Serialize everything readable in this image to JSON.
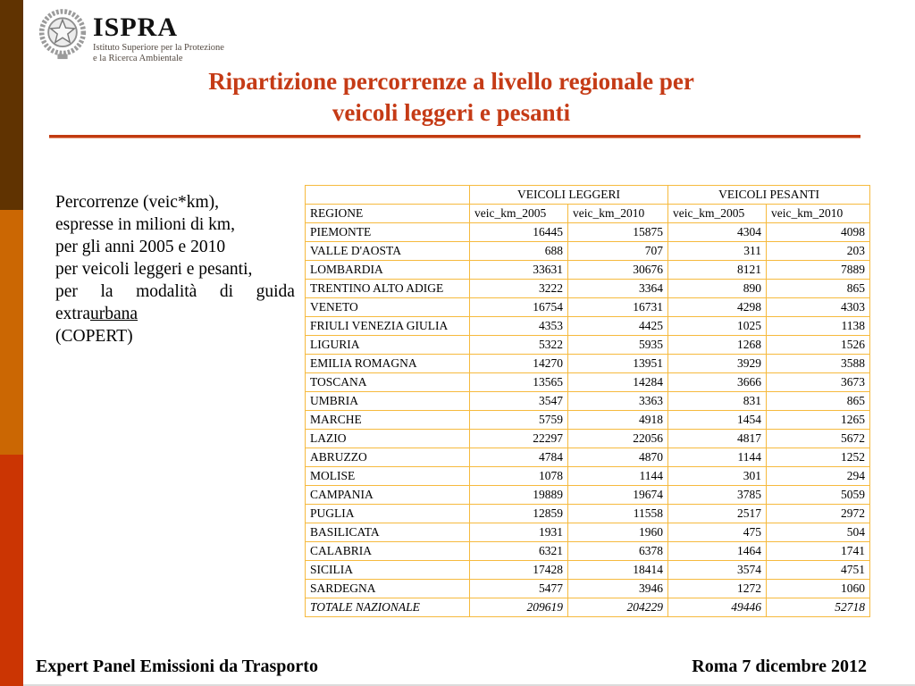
{
  "logo": {
    "acronym": "ISPRA",
    "subtitle_line1": "Istituto Superiore per la Protezione",
    "subtitle_line2": "e la Ricerca Ambientale"
  },
  "title": {
    "line1": "Ripartizione percorrenze a livello regionale per",
    "line2": "veicoli leggeri e pesanti"
  },
  "description": {
    "lines": [
      "Percorrenze (veic*km),",
      "espresse in milioni di km,",
      "per gli anni 2005 e 2010",
      "per veicoli leggeri e pesanti,"
    ],
    "justified_words": [
      "per",
      "la",
      "modalità",
      "di",
      "guida"
    ],
    "underline_prefix": "extra",
    "underline_word": "urbana",
    "closing_line": "(COPERT)"
  },
  "table": {
    "group_headers": [
      "VEICOLI LEGGERI",
      "VEICOLI PESANTI"
    ],
    "column_headers": [
      "REGIONE",
      "veic_km_2005",
      "veic_km_2010",
      "veic_km_2005",
      "veic_km_2010"
    ],
    "rows": [
      [
        "PIEMONTE",
        "16445",
        "15875",
        "4304",
        "4098"
      ],
      [
        "VALLE D'AOSTA",
        "688",
        "707",
        "311",
        "203"
      ],
      [
        "LOMBARDIA",
        "33631",
        "30676",
        "8121",
        "7889"
      ],
      [
        "TRENTINO ALTO ADIGE",
        "3222",
        "3364",
        "890",
        "865"
      ],
      [
        "VENETO",
        "16754",
        "16731",
        "4298",
        "4303"
      ],
      [
        "FRIULI VENEZIA GIULIA",
        "4353",
        "4425",
        "1025",
        "1138"
      ],
      [
        "LIGURIA",
        "5322",
        "5935",
        "1268",
        "1526"
      ],
      [
        "EMILIA ROMAGNA",
        "14270",
        "13951",
        "3929",
        "3588"
      ],
      [
        "TOSCANA",
        "13565",
        "14284",
        "3666",
        "3673"
      ],
      [
        "UMBRIA",
        "3547",
        "3363",
        "831",
        "865"
      ],
      [
        "MARCHE",
        "5759",
        "4918",
        "1454",
        "1265"
      ],
      [
        "LAZIO",
        "22297",
        "22056",
        "4817",
        "5672"
      ],
      [
        "ABRUZZO",
        "4784",
        "4870",
        "1144",
        "1252"
      ],
      [
        "MOLISE",
        "1078",
        "1144",
        "301",
        "294"
      ],
      [
        "CAMPANIA",
        "19889",
        "19674",
        "3785",
        "5059"
      ],
      [
        "PUGLIA",
        "12859",
        "11558",
        "2517",
        "2972"
      ],
      [
        "BASILICATA",
        "1931",
        "1960",
        "475",
        "504"
      ],
      [
        "CALABRIA",
        "6321",
        "6378",
        "1464",
        "1741"
      ],
      [
        "SICILIA",
        "17428",
        "18414",
        "3574",
        "4751"
      ],
      [
        "SARDEGNA",
        "5477",
        "3946",
        "1272",
        "1060"
      ]
    ],
    "total_row": [
      "TOTALE NAZIONALE",
      "209619",
      "204229",
      "49446",
      "52718"
    ]
  },
  "footer": {
    "left": "Expert Panel Emissioni da Trasporto",
    "right": "Roma 7 dicembre 2012"
  },
  "colors": {
    "stripe_brown": "#603301",
    "stripe_orange": "#cb6703",
    "stripe_red": "#cb3503",
    "title_red": "#c53b16",
    "rule_red": "#c23a10",
    "table_border_gold": "#f6ba3e"
  }
}
